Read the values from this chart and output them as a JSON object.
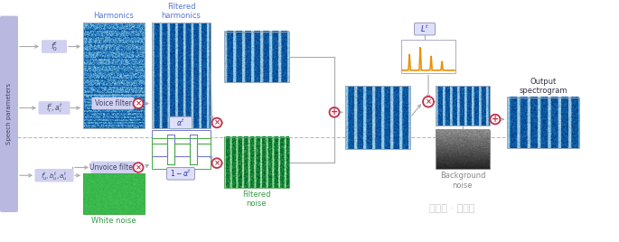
{
  "bg_color": "#ffffff",
  "speech_params_bg": "#b8b8e0",
  "label_box_bg": "#d0d0f0",
  "arrow_color": "#aaaaaa",
  "circle_color": "#c0304a",
  "text_blue": "#5577cc",
  "text_green": "#3a9a4a",
  "text_dark": "#333344",
  "text_gray": "#888888",
  "dashed_color": "#bbbbbb",
  "label_speech": "Speech parameters",
  "title_harmonics": "Harmonics",
  "title_filt_harm": "Filtered\nharmonics",
  "title_voice_filter": "Voice filter",
  "title_unvoice_filter": "Unvoice filter",
  "title_white_noise": "White noise",
  "title_filt_noise": "Filtered\nnoise",
  "title_bg_noise": "Background\nnoise",
  "title_output": "Output\nspectrogram",
  "watermark": "公众号 · 量子位"
}
